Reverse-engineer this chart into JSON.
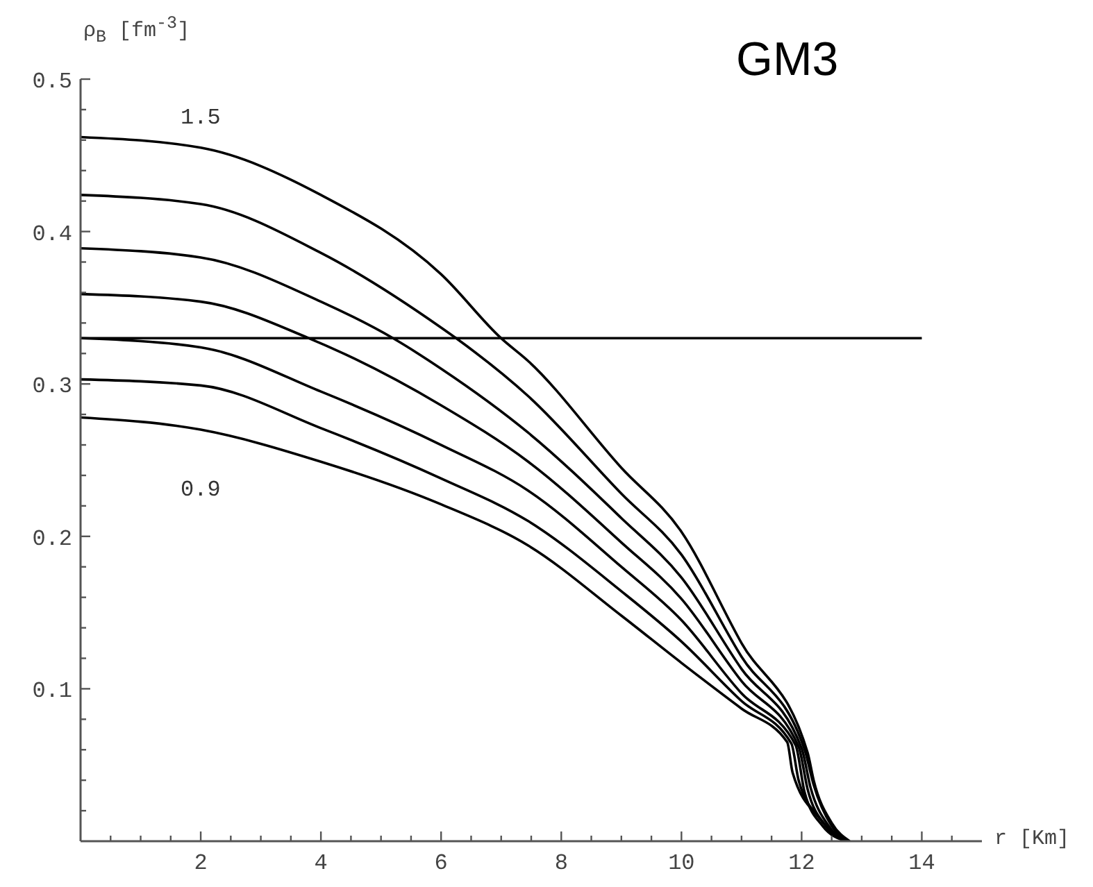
{
  "chart_data": {
    "type": "line",
    "xlabel": "r [Km]",
    "ylabel": "ρ$_{B}$ [fm$^{-3}$]",
    "annotations": [
      "1.5",
      "0.9",
      "GM3"
    ],
    "xlim": [
      0,
      15
    ],
    "xticks": [
      {
        "value": 0.5,
        "label": null
      },
      {
        "value": 1,
        "label": null
      },
      {
        "value": 1.5,
        "label": null
      },
      2,
      {
        "value": 2.5,
        "label": null
      },
      {
        "value": 3,
        "label": null
      },
      {
        "value": 3.5,
        "label": null
      },
      4,
      {
        "value": 4.5,
        "label": null
      },
      {
        "value": 5,
        "label": null
      },
      {
        "value": 5.5,
        "label": null
      },
      6,
      {
        "value": 6.5,
        "label": null
      },
      {
        "value": 7,
        "label": null
      },
      {
        "value": 7.5,
        "label": null
      },
      8,
      {
        "value": 8.5,
        "label": null
      },
      {
        "value": 9,
        "label": null
      },
      {
        "value": 9.5,
        "label": null
      },
      10,
      {
        "value": 10.5,
        "label": null
      },
      {
        "value": 11,
        "label": null
      },
      {
        "value": 11.5,
        "label": null
      },
      12,
      {
        "value": 12.5,
        "label": null
      },
      {
        "value": 13,
        "label": null
      },
      {
        "value": 13.5,
        "label": null
      },
      14,
      {
        "value": 14.5,
        "label": null
      }
    ],
    "ylim": [
      0,
      0.5
    ],
    "yticks": [
      {
        "value": 0.02,
        "label": null
      },
      {
        "value": 0.04,
        "label": null
      },
      {
        "value": 0.06,
        "label": null
      },
      {
        "value": 0.08,
        "label": null
      },
      0.1,
      {
        "value": 0.12,
        "label": null
      },
      {
        "value": 0.14,
        "label": null
      },
      {
        "value": 0.16,
        "label": null
      },
      {
        "value": 0.18,
        "label": null
      },
      0.2,
      {
        "value": 0.22,
        "label": null
      },
      {
        "value": 0.24,
        "label": null
      },
      {
        "value": 0.26,
        "label": null
      },
      {
        "value": 0.28,
        "label": null
      },
      0.3,
      {
        "value": 0.32,
        "label": null
      },
      {
        "value": 0.34,
        "label": null
      },
      {
        "value": 0.36,
        "label": null
      },
      {
        "value": 0.38,
        "label": null
      },
      0.4,
      {
        "value": 0.42,
        "label": null
      },
      {
        "value": 0.44,
        "label": null
      },
      {
        "value": 0.46,
        "label": null
      },
      {
        "value": 0.48,
        "label": null
      },
      0.5
    ],
    "series": [
      {
        "color": "#000000",
        "x": [
          0,
          2,
          4,
          6,
          7,
          7.45,
          9,
          10,
          11,
          12.1,
          12.2,
          12.5,
          12.8
        ],
        "values": [
          0.462,
          0.455,
          0.424,
          0.372,
          0.33,
          0.315,
          0.245,
          0.203,
          0.13,
          0.058,
          0.04,
          0.012,
          0
        ]
      },
      {
        "color": "#000000",
        "x": [
          0,
          2,
          4,
          6,
          6.25,
          7.45,
          9,
          10,
          11,
          12.05,
          12.2,
          12.5,
          12.78
        ],
        "values": [
          0.424,
          0.418,
          0.386,
          0.337,
          0.33,
          0.292,
          0.228,
          0.188,
          0.121,
          0.06,
          0.037,
          0.01,
          0
        ]
      },
      {
        "color": "#000000",
        "x": [
          0,
          2,
          4,
          5.2,
          6,
          7.45,
          9,
          10,
          11,
          12.0,
          12.15,
          12.45,
          12.76
        ],
        "values": [
          0.389,
          0.383,
          0.354,
          0.33,
          0.31,
          0.268,
          0.212,
          0.173,
          0.113,
          0.061,
          0.035,
          0.01,
          0
        ]
      },
      {
        "color": "#000000",
        "x": [
          0,
          2,
          3.8,
          6,
          7.45,
          9,
          10,
          11,
          11.95,
          12.1,
          12.4,
          12.75
        ],
        "values": [
          0.359,
          0.354,
          0.33,
          0.286,
          0.249,
          0.196,
          0.159,
          0.105,
          0.062,
          0.034,
          0.01,
          0
        ]
      },
      {
        "color": "#000000",
        "x": [
          0,
          2,
          4,
          6,
          7.45,
          9,
          10,
          11,
          11.9,
          12.05,
          12.35,
          12.74
        ],
        "values": [
          0.33,
          0.324,
          0.295,
          0.26,
          0.23,
          0.18,
          0.145,
          0.097,
          0.063,
          0.032,
          0.01,
          0
        ]
      },
      {
        "color": "#000000",
        "x": [
          0,
          2,
          4,
          6,
          7.45,
          9,
          10,
          11,
          11.83,
          11.95,
          12.3,
          12.73
        ],
        "values": [
          0.303,
          0.299,
          0.271,
          0.238,
          0.21,
          0.164,
          0.131,
          0.092,
          0.064,
          0.04,
          0.015,
          0
        ]
      },
      {
        "color": "#000000",
        "x": [
          0,
          2,
          4,
          6,
          7.45,
          9,
          10,
          11,
          11.76,
          11.85,
          12.3,
          12.72
        ],
        "values": [
          0.278,
          0.27,
          0.249,
          0.221,
          0.194,
          0.148,
          0.117,
          0.087,
          0.065,
          0.045,
          0.015,
          0
        ]
      },
      {
        "color": "#000000",
        "x": [
          0,
          14
        ],
        "values": [
          0.33,
          0.33
        ]
      }
    ]
  }
}
